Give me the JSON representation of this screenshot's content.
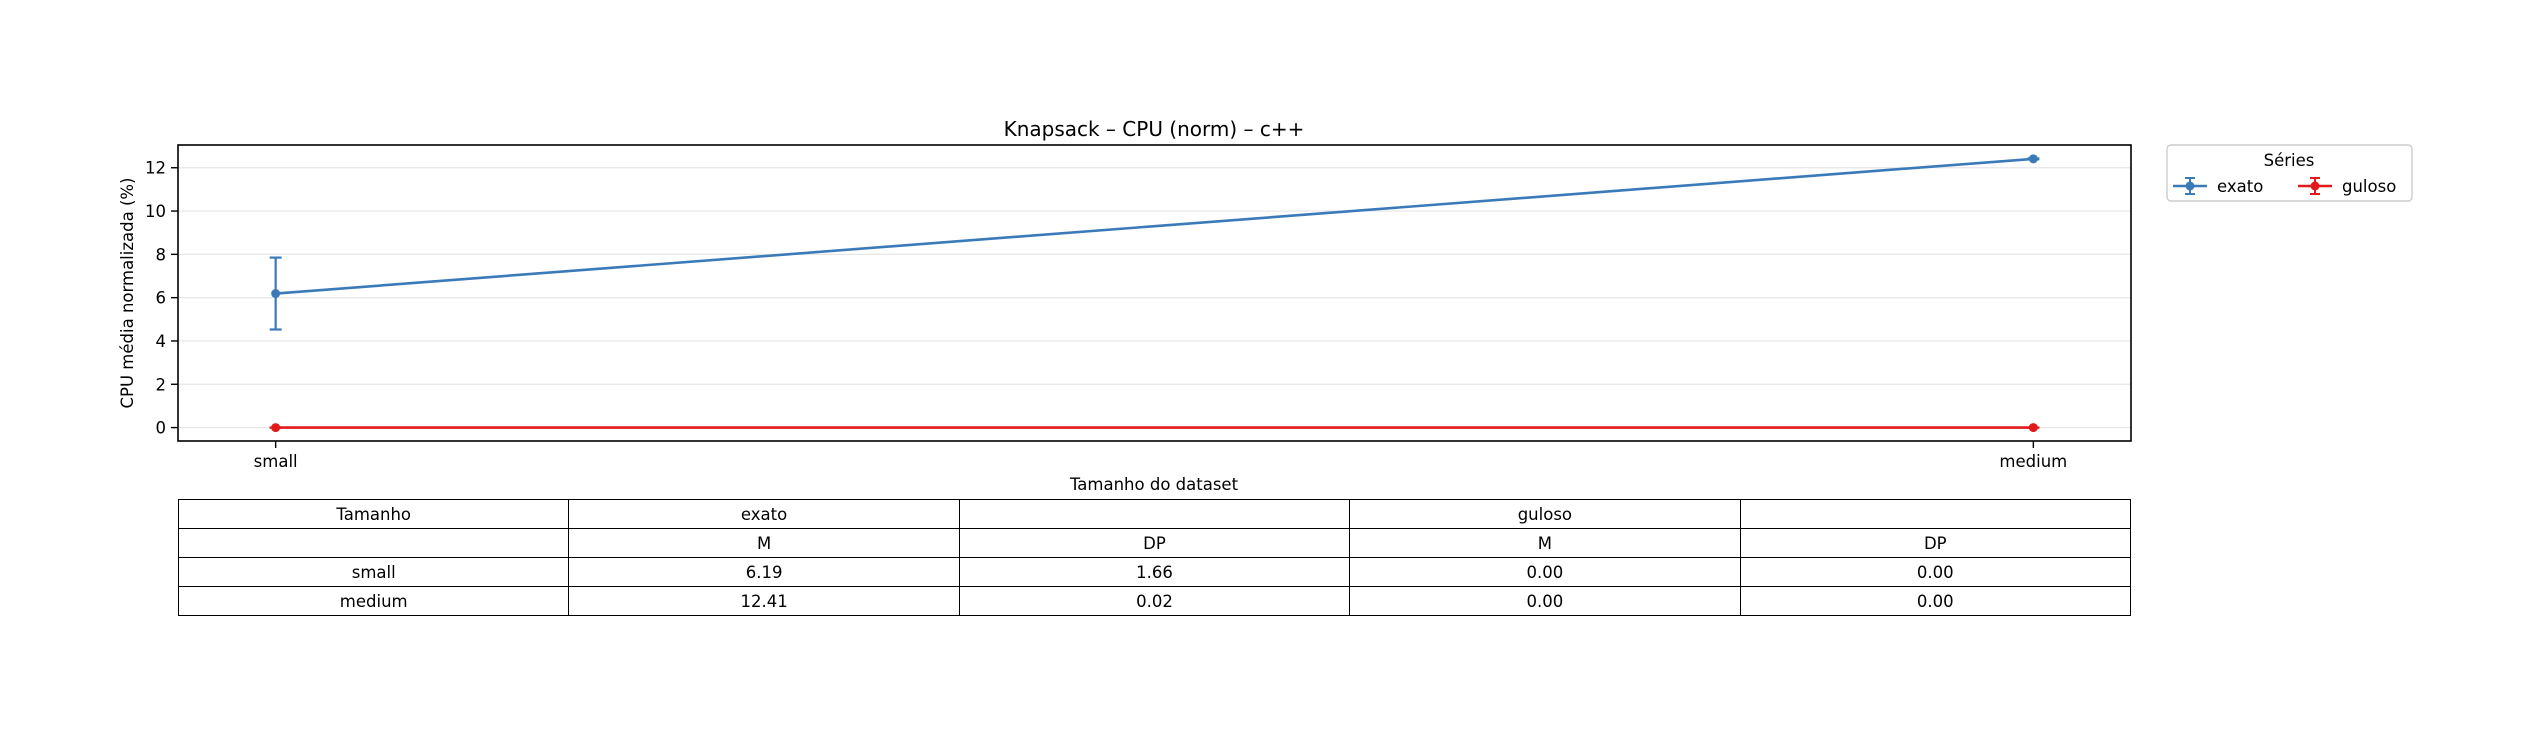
{
  "chart_data": {
    "type": "line",
    "title": "Knapsack – CPU (norm) – c++",
    "xlabel": "Tamanho do dataset",
    "ylabel": "CPU média normalizada (%)",
    "categories": [
      "small",
      "medium"
    ],
    "ylim": [
      -0.62,
      13.05
    ],
    "yticks": [
      0,
      2,
      4,
      6,
      8,
      10,
      12
    ],
    "grid": "horizontal",
    "legend": {
      "title": "Séries",
      "placement": "outside-top-right",
      "ncol": 2
    },
    "series": [
      {
        "name": "exato",
        "values": [
          6.19,
          12.41
        ],
        "error": [
          1.66,
          0.02
        ],
        "color": "#3a7ab8"
      },
      {
        "name": "guloso",
        "values": [
          0.0,
          0.0
        ],
        "error": [
          0.0,
          0.0
        ],
        "color": "#e31a1c"
      }
    ]
  },
  "table": {
    "header_row": [
      "Tamanho",
      "exato",
      "",
      "guloso",
      ""
    ],
    "sub_row": [
      "",
      "M",
      "DP",
      "M",
      "DP"
    ],
    "rows": [
      [
        "small",
        "6.19",
        "1.66",
        "0.00",
        "0.00"
      ],
      [
        "medium",
        "12.41",
        "0.02",
        "0.00",
        "0.00"
      ]
    ]
  }
}
